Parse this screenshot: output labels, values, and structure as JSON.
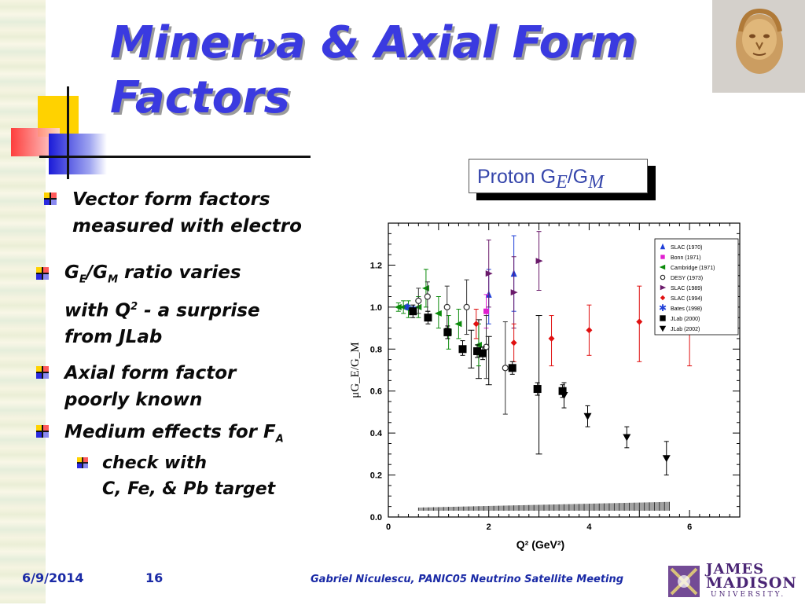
{
  "slide": {
    "title_prefix": "Miner",
    "title_nu": "ν",
    "title_suffix": "a & Axial Form",
    "title_line2": "Factors",
    "chart_header": {
      "text": "Proton G",
      "sub1": "E",
      "slash": "/G",
      "sub2": "M"
    }
  },
  "bullets": [
    {
      "lines": [
        "Vector form factors",
        "measured with electro"
      ]
    },
    {
      "line1": {
        "g": "G",
        "sub_e": "E",
        "slash": "/G",
        "sub_m": "M",
        "rest": " ratio varies"
      },
      "line2": {
        "a": "with Q",
        "sup": "2",
        "b": " - a surprise"
      },
      "line3": "from JLab"
    },
    {
      "lines": [
        "Axial form factor",
        "poorly known"
      ]
    },
    {
      "text": "Medium effects for F",
      "sub": "A"
    },
    {
      "lines": [
        "check with",
        "C, Fe, & Pb target"
      ]
    }
  ],
  "footer": {
    "date": "6/9/2014",
    "page": "16",
    "meeting": "Gabriel Niculescu, PANIC05 Neutrino Satellite Meeting",
    "logo_line1": "JAMES",
    "logo_line2": "MADISON",
    "logo_line3": "UNIVERSITY."
  },
  "colors": {
    "title": "#3a3ae0",
    "footer": "#1a2aa6",
    "header_text": "#3646ab"
  },
  "chart_data": {
    "type": "scatter",
    "xlabel": "Q² (GeV²)",
    "ylabel": "μG_E/G_M",
    "xlim": [
      0,
      7
    ],
    "ylim": [
      0,
      1.4
    ],
    "xticks": [
      0,
      2,
      4,
      6
    ],
    "yticks": [
      0.0,
      0.2,
      0.4,
      0.6,
      0.8,
      1.0,
      1.2
    ],
    "legend_position": "top-right",
    "series": [
      {
        "name": "SLAC (1970)",
        "marker": "triangle-up",
        "color": "#1f3fd8",
        "points": [
          {
            "x": 2.0,
            "y": 1.06,
            "lo": 0.92,
            "hi": 1.18
          },
          {
            "x": 2.5,
            "y": 1.16,
            "lo": 0.98,
            "hi": 1.34
          }
        ]
      },
      {
        "name": "Bonn (1971)",
        "marker": "square",
        "color": "#e020d0",
        "points": [
          {
            "x": 1.95,
            "y": 0.98,
            "lo": 0.9,
            "hi": 1.06
          }
        ]
      },
      {
        "name": "Cambridge (1971)",
        "marker": "triangle-left",
        "color": "#0a8a0a",
        "points": [
          {
            "x": 0.2,
            "y": 1.0,
            "lo": 0.98,
            "hi": 1.02
          },
          {
            "x": 0.3,
            "y": 1.0,
            "lo": 0.97,
            "hi": 1.03
          },
          {
            "x": 0.4,
            "y": 0.99,
            "lo": 0.95,
            "hi": 1.03
          },
          {
            "x": 0.6,
            "y": 1.0,
            "lo": 0.95,
            "hi": 1.05
          },
          {
            "x": 0.75,
            "y": 1.09,
            "lo": 1.0,
            "hi": 1.18
          },
          {
            "x": 1.0,
            "y": 0.97,
            "lo": 0.9,
            "hi": 1.05
          },
          {
            "x": 1.2,
            "y": 0.88,
            "lo": 0.8,
            "hi": 0.96
          },
          {
            "x": 1.4,
            "y": 0.92,
            "lo": 0.85,
            "hi": 0.99
          },
          {
            "x": 1.8,
            "y": 0.82,
            "lo": 0.72,
            "hi": 0.92
          }
        ]
      },
      {
        "name": "DESY (1973)",
        "marker": "circle-open",
        "color": "#333333",
        "points": [
          {
            "x": 0.6,
            "y": 1.03,
            "lo": 0.97,
            "hi": 1.09
          },
          {
            "x": 0.78,
            "y": 1.05,
            "lo": 0.98,
            "hi": 1.12
          },
          {
            "x": 1.17,
            "y": 1.0,
            "lo": 0.9,
            "hi": 1.1
          },
          {
            "x": 1.56,
            "y": 1.0,
            "lo": 0.87,
            "hi": 1.13
          },
          {
            "x": 1.95,
            "y": 0.81,
            "lo": 0.66,
            "hi": 0.96
          },
          {
            "x": 2.33,
            "y": 0.71,
            "lo": 0.49,
            "hi": 0.93
          }
        ]
      },
      {
        "name": "SLAC (1989)",
        "marker": "triangle-right",
        "color": "#6a1a6a",
        "points": [
          {
            "x": 2.0,
            "y": 1.16,
            "lo": 1.0,
            "hi": 1.32
          },
          {
            "x": 2.5,
            "y": 1.07,
            "lo": 0.9,
            "hi": 1.24
          },
          {
            "x": 3.0,
            "y": 1.22,
            "lo": 1.08,
            "hi": 1.36
          }
        ]
      },
      {
        "name": "SLAC (1994)",
        "marker": "diamond",
        "color": "#e01010",
        "points": [
          {
            "x": 1.75,
            "y": 0.92,
            "lo": 0.85,
            "hi": 0.99
          },
          {
            "x": 2.5,
            "y": 0.83,
            "lo": 0.74,
            "hi": 0.92
          },
          {
            "x": 3.25,
            "y": 0.85,
            "lo": 0.72,
            "hi": 0.96
          },
          {
            "x": 4.0,
            "y": 0.89,
            "lo": 0.77,
            "hi": 1.01
          },
          {
            "x": 5.0,
            "y": 0.93,
            "lo": 0.74,
            "hi": 1.1
          },
          {
            "x": 6.0,
            "y": 0.97,
            "lo": 0.72,
            "hi": 1.17
          }
        ]
      },
      {
        "name": "Bates (1998)",
        "marker": "star",
        "color": "#1f3fd8",
        "points": [
          {
            "x": 0.38,
            "y": 1.0,
            "lo": 0.99,
            "hi": 1.01
          },
          {
            "x": 0.5,
            "y": 0.99,
            "lo": 0.98,
            "hi": 1.0
          }
        ]
      },
      {
        "name": "JLab (2000)",
        "marker": "square-filled",
        "color": "#000000",
        "points": [
          {
            "x": 0.49,
            "y": 0.98,
            "lo": 0.95,
            "hi": 1.01
          },
          {
            "x": 0.79,
            "y": 0.95,
            "lo": 0.92,
            "hi": 0.98
          },
          {
            "x": 1.18,
            "y": 0.88,
            "lo": 0.85,
            "hi": 0.91
          },
          {
            "x": 1.48,
            "y": 0.8,
            "lo": 0.77,
            "hi": 0.84
          },
          {
            "x": 1.77,
            "y": 0.79,
            "lo": 0.76,
            "hi": 0.82
          },
          {
            "x": 1.88,
            "y": 0.78,
            "lo": 0.75,
            "hi": 0.81
          },
          {
            "x": 2.47,
            "y": 0.71,
            "lo": 0.68,
            "hi": 0.74
          },
          {
            "x": 2.97,
            "y": 0.61,
            "lo": 0.58,
            "hi": 0.64
          },
          {
            "x": 3.47,
            "y": 0.6,
            "lo": 0.57,
            "hi": 0.63
          }
        ]
      },
      {
        "name": "JLab (2002)",
        "marker": "triangle-down",
        "color": "#000000",
        "points": [
          {
            "x": 3.5,
            "y": 0.58,
            "lo": 0.52,
            "hi": 0.64
          },
          {
            "x": 3.97,
            "y": 0.48,
            "lo": 0.43,
            "hi": 0.53
          },
          {
            "x": 4.75,
            "y": 0.38,
            "lo": 0.33,
            "hi": 0.43
          },
          {
            "x": 5.54,
            "y": 0.28,
            "lo": 0.2,
            "hi": 0.36
          }
        ]
      }
    ],
    "extra_errorbars": [
      {
        "x": 1.65,
        "lo": 0.71,
        "hi": 0.89
      },
      {
        "x": 2.0,
        "lo": 0.63,
        "hi": 0.86
      },
      {
        "x": 3.0,
        "lo": 0.3,
        "hi": 0.96
      },
      {
        "x": 1.8,
        "lo": 0.66,
        "hi": 0.94
      }
    ],
    "systematic_band": {
      "x": [
        0.6,
        5.6
      ],
      "y_start": 0.045,
      "y_end": 0.072
    }
  }
}
